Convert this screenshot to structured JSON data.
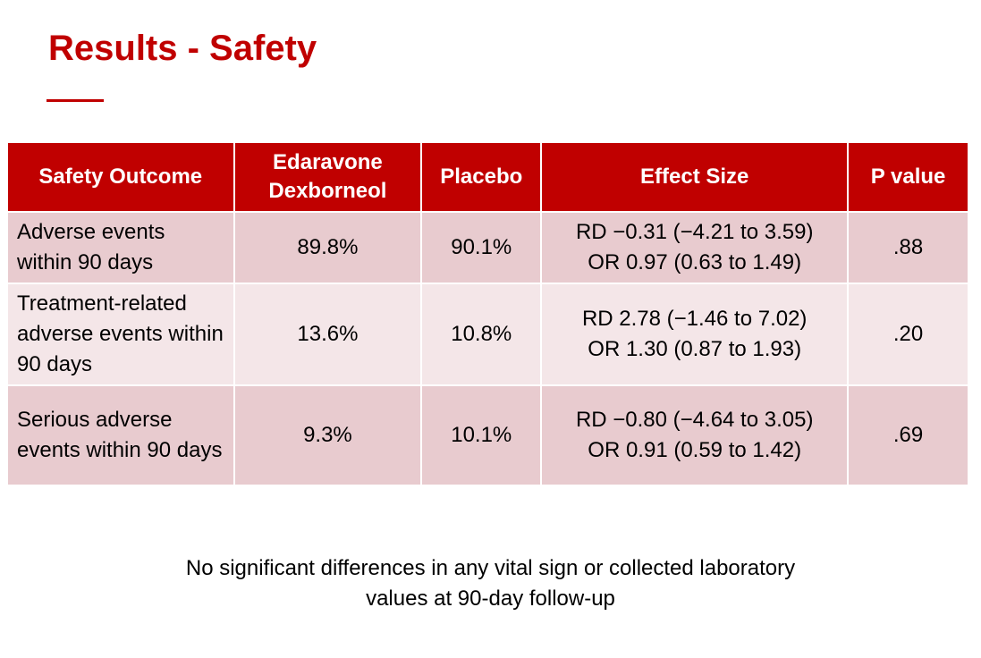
{
  "title": "Results - Safety",
  "table": {
    "headers": {
      "outcome": "Safety Outcome",
      "drug_line1": "Edaravone",
      "drug_line2": "Dexborneol",
      "placebo": "Placebo",
      "effect": "Effect Size",
      "pvalue": "P value"
    },
    "rows": [
      {
        "outcome": "Adverse events within 90 days",
        "drug": "89.8%",
        "placebo": "90.1%",
        "effect_rd": "RD −0.31 (−4.21 to 3.59)",
        "effect_or": "OR 0.97 (0.63 to 1.49)",
        "pvalue": ".88"
      },
      {
        "outcome": "Treatment-related adverse events within 90 days",
        "drug": "13.6%",
        "placebo": "10.8%",
        "effect_rd": "RD 2.78 (−1.46 to 7.02)",
        "effect_or": "OR 1.30 (0.87 to 1.93)",
        "pvalue": ".20"
      },
      {
        "outcome": "Serious adverse events within 90 days",
        "drug": "9.3%",
        "placebo": "10.1%",
        "effect_rd": "RD −0.80 (−4.64 to 3.05)",
        "effect_or": "OR 0.91 (0.59 to 1.42)",
        "pvalue": ".69"
      }
    ]
  },
  "footnote": {
    "line1": "No significant differences in any vital sign or collected laboratory",
    "line2": "values at 90-day follow-up"
  },
  "colors": {
    "accent": "#c00000",
    "row_dark": "#e8cbcf",
    "row_light": "#f4e6e8"
  }
}
